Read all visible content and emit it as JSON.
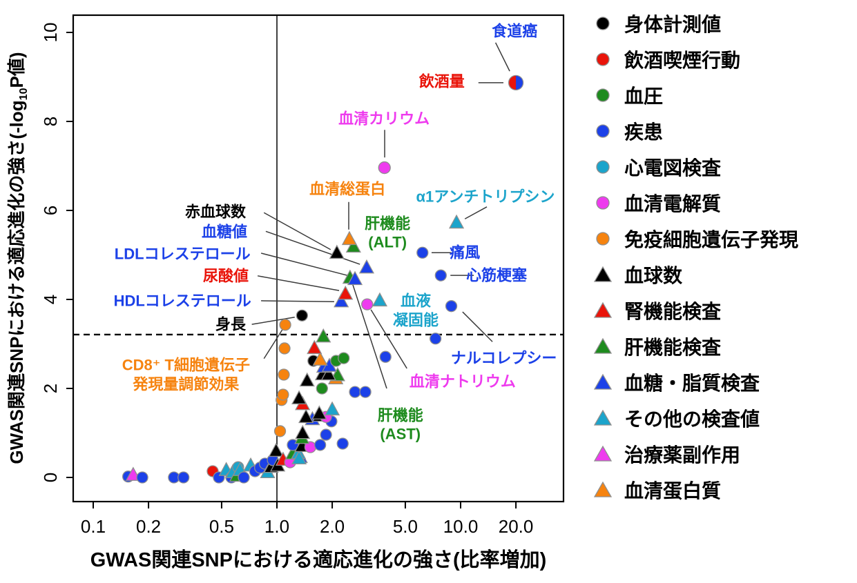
{
  "chart_data": {
    "type": "scatter",
    "palette": {
      "black": "#000000",
      "red": "#E9140A",
      "green": "#1E8B1E",
      "blue": "#1C41E8",
      "cyan": "#1CA4CB",
      "magenta": "#EE3BEE",
      "orange": "#F6830F",
      "marker_stroke": "#8F8F8F"
    },
    "x_axis": {
      "title": "GWAS関連SNPにおける適応進化の強さ(比率増加)",
      "scale": "log",
      "tick_values": [
        0.1,
        0.2,
        0.5,
        1.0,
        2.0,
        5.0,
        10.0,
        20.0
      ],
      "tick_labels": [
        "0.1",
        "0.2",
        "0.5",
        "1.0",
        "2.0",
        "5.0",
        "10.0",
        "20.0"
      ],
      "range": [
        0.075,
        36
      ]
    },
    "y_axis": {
      "title_pre": "GWAS関連SNPにおける適応進化の強さ(-log",
      "title_sub": "10",
      "title_post": "P値)",
      "scale": "linear",
      "tick_values": [
        0,
        2,
        4,
        6,
        8,
        10
      ],
      "tick_labels": [
        "0",
        "2",
        "4",
        "6",
        "8",
        "10"
      ],
      "range": [
        -0.55,
        10.4
      ]
    },
    "reference_lines": {
      "solid_vertical_x": 1.0,
      "dashed_horizontal_y": 3.21
    },
    "legend": [
      {
        "shape": "circle",
        "color": "black",
        "label": "身体計測値"
      },
      {
        "shape": "circle",
        "color": "red",
        "label": "飲酒喫煙行動"
      },
      {
        "shape": "circle",
        "color": "green",
        "label": "血圧"
      },
      {
        "shape": "circle",
        "color": "blue",
        "label": "疾患"
      },
      {
        "shape": "circle",
        "color": "cyan",
        "label": "心電図検査"
      },
      {
        "shape": "circle",
        "color": "magenta",
        "label": "血清電解質"
      },
      {
        "shape": "circle",
        "color": "orange",
        "label": "免疫細胞遺伝子発現"
      },
      {
        "shape": "triangle",
        "color": "black",
        "label": "血球数"
      },
      {
        "shape": "triangle",
        "color": "red",
        "label": "腎機能検査"
      },
      {
        "shape": "triangle",
        "color": "green",
        "label": "肝機能検査"
      },
      {
        "shape": "triangle",
        "color": "blue",
        "label": "血糖・脂質検査"
      },
      {
        "shape": "triangle",
        "color": "cyan",
        "label": "その他の検査値"
      },
      {
        "shape": "triangle",
        "color": "magenta",
        "label": "治療薬副作用"
      },
      {
        "shape": "triangle",
        "color": "orange",
        "label": "血清蛋白質"
      }
    ],
    "points": [
      {
        "x": 0.155,
        "y": 0.02,
        "shape": "circle",
        "color": "blue"
      },
      {
        "x": 0.165,
        "y": 0.05,
        "shape": "triangle",
        "color": "magenta"
      },
      {
        "x": 0.185,
        "y": 0.0,
        "shape": "circle",
        "color": "blue"
      },
      {
        "x": 0.275,
        "y": 0.0,
        "shape": "circle",
        "color": "blue"
      },
      {
        "x": 0.31,
        "y": 0.0,
        "shape": "circle",
        "color": "blue"
      },
      {
        "x": 0.447,
        "y": 0.14,
        "shape": "circle",
        "color": "red"
      },
      {
        "x": 0.483,
        "y": 0.0,
        "shape": "circle",
        "color": "blue"
      },
      {
        "x": 0.53,
        "y": 0.16,
        "shape": "triangle",
        "color": "cyan"
      },
      {
        "x": 0.565,
        "y": 0.0,
        "shape": "circle",
        "color": "blue"
      },
      {
        "x": 0.575,
        "y": 0.11,
        "shape": "triangle",
        "color": "cyan"
      },
      {
        "x": 0.605,
        "y": 0.03,
        "shape": "triangle",
        "color": "green"
      },
      {
        "x": 0.615,
        "y": 0.23,
        "shape": "circle",
        "color": "cyan"
      },
      {
        "x": 0.63,
        "y": 0.16,
        "shape": "triangle",
        "color": "cyan"
      },
      {
        "x": 0.66,
        "y": 0.0,
        "shape": "circle",
        "color": "blue"
      },
      {
        "x": 0.72,
        "y": 0.26,
        "shape": "triangle",
        "color": "cyan"
      },
      {
        "x": 0.76,
        "y": 0.14,
        "shape": "circle",
        "color": "blue"
      },
      {
        "x": 0.81,
        "y": 0.22,
        "shape": "circle",
        "color": "blue"
      },
      {
        "x": 0.86,
        "y": 0.31,
        "shape": "circle",
        "color": "blue"
      },
      {
        "x": 0.89,
        "y": 0.11,
        "shape": "triangle",
        "color": "cyan"
      },
      {
        "x": 0.93,
        "y": 0.23,
        "shape": "triangle",
        "color": "black"
      },
      {
        "x": 0.95,
        "y": 0.39,
        "shape": "circle",
        "color": "blue"
      },
      {
        "x": 1.01,
        "y": 0.26,
        "shape": "triangle",
        "color": "black"
      },
      {
        "x": 0.99,
        "y": 0.59,
        "shape": "triangle",
        "color": "black"
      },
      {
        "x": 1.08,
        "y": 0.39,
        "shape": "triangle",
        "color": "red"
      },
      {
        "x": 1.18,
        "y": 0.34,
        "shape": "circle",
        "color": "magenta"
      },
      {
        "x": 1.34,
        "y": 0.45,
        "shape": "triangle",
        "color": "blue"
      },
      {
        "x": 1.22,
        "y": 0.53,
        "shape": "triangle",
        "color": "green"
      },
      {
        "x": 1.31,
        "y": 0.54,
        "shape": "triangle",
        "color": "cyan"
      },
      {
        "x": 1.32,
        "y": 0.42,
        "shape": "triangle",
        "color": "cyan"
      },
      {
        "x": 1.22,
        "y": 0.73,
        "shape": "circle",
        "color": "blue"
      },
      {
        "x": 1.37,
        "y": 0.7,
        "shape": "triangle",
        "color": "black"
      },
      {
        "x": 1.52,
        "y": 0.68,
        "shape": "circle",
        "color": "magenta"
      },
      {
        "x": 1.72,
        "y": 0.73,
        "shape": "circle",
        "color": "blue"
      },
      {
        "x": 2.28,
        "y": 0.76,
        "shape": "circle",
        "color": "blue"
      },
      {
        "x": 1.37,
        "y": 0.88,
        "shape": "triangle",
        "color": "green"
      },
      {
        "x": 1.38,
        "y": 0.99,
        "shape": "triangle",
        "color": "black"
      },
      {
        "x": 1.85,
        "y": 0.96,
        "shape": "circle",
        "color": "blue"
      },
      {
        "x": 1.04,
        "y": 1.04,
        "shape": "circle",
        "color": "orange"
      },
      {
        "x": 1.98,
        "y": 1.26,
        "shape": "circle",
        "color": "blue"
      },
      {
        "x": 1.56,
        "y": 1.3,
        "shape": "triangle",
        "color": "blue"
      },
      {
        "x": 1.44,
        "y": 1.35,
        "shape": "triangle",
        "color": "black"
      },
      {
        "x": 1.71,
        "y": 1.38,
        "shape": "triangle",
        "color": "black"
      },
      {
        "x": 1.85,
        "y": 1.36,
        "shape": "circle",
        "color": "magenta"
      },
      {
        "x": 1.7,
        "y": 1.43,
        "shape": "triangle",
        "color": "black"
      },
      {
        "x": 2.0,
        "y": 1.52,
        "shape": "triangle",
        "color": "cyan"
      },
      {
        "x": 1.38,
        "y": 1.64,
        "shape": "triangle",
        "color": "red"
      },
      {
        "x": 1.32,
        "y": 1.77,
        "shape": "triangle",
        "color": "black"
      },
      {
        "x": 1.06,
        "y": 1.74,
        "shape": "circle",
        "color": "orange"
      },
      {
        "x": 1.08,
        "y": 1.86,
        "shape": "circle",
        "color": "orange"
      },
      {
        "x": 2.66,
        "y": 1.92,
        "shape": "circle",
        "color": "blue"
      },
      {
        "x": 3.03,
        "y": 1.92,
        "shape": "circle",
        "color": "blue"
      },
      {
        "x": 1.76,
        "y": 2.0,
        "shape": "circle",
        "color": "green"
      },
      {
        "x": 1.46,
        "y": 2.17,
        "shape": "triangle",
        "color": "black"
      },
      {
        "x": 2.09,
        "y": 2.22,
        "shape": "triangle",
        "color": "orange"
      },
      {
        "x": 2.14,
        "y": 2.29,
        "shape": "triangle",
        "color": "green"
      },
      {
        "x": 1.77,
        "y": 2.31,
        "shape": "triangle",
        "color": "black"
      },
      {
        "x": 1.91,
        "y": 2.31,
        "shape": "triangle",
        "color": "black"
      },
      {
        "x": 1.09,
        "y": 2.31,
        "shape": "circle",
        "color": "orange"
      },
      {
        "x": 1.8,
        "y": 2.48,
        "shape": "triangle",
        "color": "blue"
      },
      {
        "x": 1.93,
        "y": 2.5,
        "shape": "triangle",
        "color": "blue"
      },
      {
        "x": 1.58,
        "y": 2.62,
        "shape": "circle",
        "color": "black"
      },
      {
        "x": 1.72,
        "y": 2.64,
        "shape": "triangle",
        "color": "orange"
      },
      {
        "x": 2.1,
        "y": 2.62,
        "shape": "circle",
        "color": "green"
      },
      {
        "x": 2.31,
        "y": 2.68,
        "shape": "circle",
        "color": "green"
      },
      {
        "x": 3.9,
        "y": 2.71,
        "shape": "circle",
        "color": "blue"
      },
      {
        "x": 1.6,
        "y": 2.9,
        "shape": "triangle",
        "color": "red"
      },
      {
        "x": 1.1,
        "y": 2.9,
        "shape": "circle",
        "color": "orange"
      },
      {
        "x": 7.3,
        "y": 3.12,
        "shape": "circle",
        "color": "blue"
      },
      {
        "x": 1.79,
        "y": 3.16,
        "shape": "triangle",
        "color": "green"
      },
      {
        "x": 1.11,
        "y": 3.43,
        "shape": "circle",
        "color": "orange",
        "name": "CD8⁺ T細胞遺伝子発現量調節効果"
      },
      {
        "x": 1.37,
        "y": 3.64,
        "shape": "circle",
        "color": "black",
        "name": "身長"
      },
      {
        "x": 8.9,
        "y": 3.85,
        "shape": "circle",
        "color": "blue",
        "name": "ナルコレプシー"
      },
      {
        "x": 3.1,
        "y": 3.89,
        "shape": "circle",
        "color": "magenta",
        "name": "血清ナトリウム"
      },
      {
        "x": 2.24,
        "y": 3.95,
        "shape": "triangle",
        "color": "blue",
        "name": "HDLコレステロール"
      },
      {
        "x": 3.63,
        "y": 3.97,
        "shape": "triangle",
        "color": "cyan",
        "name": "血液凝固能"
      },
      {
        "x": 2.36,
        "y": 4.12,
        "shape": "triangle",
        "color": "red",
        "name": "尿酸値"
      },
      {
        "x": 2.5,
        "y": 4.48,
        "shape": "triangle",
        "color": "green",
        "name": "肝機能(AST)"
      },
      {
        "x": 2.66,
        "y": 4.45,
        "shape": "triangle",
        "color": "blue",
        "name": "LDLコレステロール"
      },
      {
        "x": 7.8,
        "y": 4.54,
        "shape": "circle",
        "color": "blue",
        "name": "心筋梗塞"
      },
      {
        "x": 3.08,
        "y": 4.71,
        "shape": "triangle",
        "color": "blue",
        "name": "血糖値"
      },
      {
        "x": 2.12,
        "y": 5.04,
        "shape": "triangle",
        "color": "black",
        "name": "赤血球数"
      },
      {
        "x": 6.2,
        "y": 5.05,
        "shape": "circle",
        "color": "blue",
        "name": "痛風"
      },
      {
        "x": 2.61,
        "y": 5.18,
        "shape": "triangle",
        "color": "green",
        "name": "肝機能(ALT)"
      },
      {
        "x": 2.48,
        "y": 5.35,
        "shape": "triangle",
        "color": "orange",
        "name": "血清総蛋白"
      },
      {
        "x": 9.5,
        "y": 5.72,
        "shape": "triangle",
        "color": "cyan",
        "name": "α1アンチトリプシン"
      },
      {
        "x": 3.85,
        "y": 6.96,
        "shape": "circle",
        "color": "magenta",
        "name": "血清カリウム",
        "r": 8.5
      },
      {
        "x": 20.0,
        "y": 8.87,
        "shape": "circle-dual",
        "color": "red+blue",
        "name": "飲酒量/食道癌",
        "r": 10.5
      }
    ],
    "annotations": [
      {
        "lines": [
          "食道癌"
        ],
        "color": "blue",
        "x": 19.7,
        "y": 10.03,
        "leader": [
          15.5,
          9.77,
          18.5,
          9.13
        ]
      },
      {
        "lines": [
          "飲酒量"
        ],
        "color": "red",
        "x": 7.9,
        "y": 8.9,
        "leader": [
          12.5,
          8.87,
          17.1,
          8.87
        ]
      },
      {
        "lines": [
          "血清カリウム"
        ],
        "color": "magenta",
        "x": 3.83,
        "y": 8.06,
        "leader": [
          3.86,
          7.81,
          3.86,
          7.19
        ]
      },
      {
        "lines": [
          "血清総蛋白"
        ],
        "color": "orange",
        "x": 2.42,
        "y": 6.48,
        "leader": [
          2.46,
          6.19,
          2.46,
          5.57
        ]
      },
      {
        "lines": [
          "α1アンチトリプシン"
        ],
        "color": "cyan",
        "x": 13.65,
        "y": 6.31,
        "leader": [
          13.9,
          6.08,
          10.55,
          5.81
        ]
      },
      {
        "lines": [
          "赤血球数"
        ],
        "color": "black",
        "x": 0.463,
        "y": 5.97,
        "leader": [
          0.85,
          5.95,
          1.96,
          5.12
        ]
      },
      {
        "lines": [
          "血糖値"
        ],
        "color": "blue",
        "x": 0.518,
        "y": 5.52,
        "leader": [
          0.87,
          5.53,
          2.83,
          4.79
        ]
      },
      {
        "lines": [
          "LDLコレステロール"
        ],
        "color": "blue",
        "x": 0.306,
        "y": 5.02,
        "leader": [
          0.82,
          5.04,
          2.42,
          4.54
        ]
      },
      {
        "lines": [
          "尿酸値"
        ],
        "color": "red",
        "x": 0.527,
        "y": 4.53,
        "leader": [
          0.785,
          4.53,
          2.18,
          4.2
        ]
      },
      {
        "lines": [
          "HDLコレステロール"
        ],
        "color": "blue",
        "x": 0.306,
        "y": 3.97,
        "leader": [
          0.82,
          3.97,
          2.05,
          3.95
        ]
      },
      {
        "lines": [
          "身長"
        ],
        "color": "black",
        "x": 0.56,
        "y": 3.44,
        "leader": [
          0.73,
          3.44,
          1.25,
          3.6
        ]
      },
      {
        "lines": [
          "CD8⁺ T細胞遺伝子",
          "発現量調節効果"
        ],
        "color": "orange",
        "x": 0.32,
        "y": 2.31,
        "leader": [
          0.85,
          2.67,
          1.07,
          3.32
        ]
      },
      {
        "lines": [
          "肝機能",
          "(ALT)"
        ],
        "color": "green",
        "x": 4.0,
        "y": 5.49,
        "leader": null
      },
      {
        "lines": [
          "痛風"
        ],
        "color": "blue",
        "x": 10.55,
        "y": 5.05,
        "leader": [
          6.95,
          5.05,
          8.9,
          5.05
        ]
      },
      {
        "lines": [
          "心筋梗塞"
        ],
        "color": "blue",
        "x": 15.7,
        "y": 4.54,
        "leader": [
          8.8,
          4.54,
          11.8,
          4.54
        ]
      },
      {
        "lines": [
          "血液",
          "凝固能"
        ],
        "color": "cyan",
        "x": 5.7,
        "y": 3.75,
        "leader": null
      },
      {
        "lines": [
          "ナルコレプシー"
        ],
        "color": "blue",
        "x": 17.2,
        "y": 2.68,
        "leader": [
          10.25,
          3.72,
          14.9,
          3.05
        ]
      },
      {
        "lines": [
          "血清ナトリウム"
        ],
        "color": "magenta",
        "x": 10.25,
        "y": 2.16,
        "leader": [
          3.25,
          3.77,
          5.1,
          2.45
        ]
      },
      {
        "lines": [
          "肝機能",
          "(AST)"
        ],
        "color": "green",
        "x": 4.7,
        "y": 1.18,
        "leader": [
          2.59,
          4.33,
          3.96,
          2.0
        ]
      }
    ]
  }
}
